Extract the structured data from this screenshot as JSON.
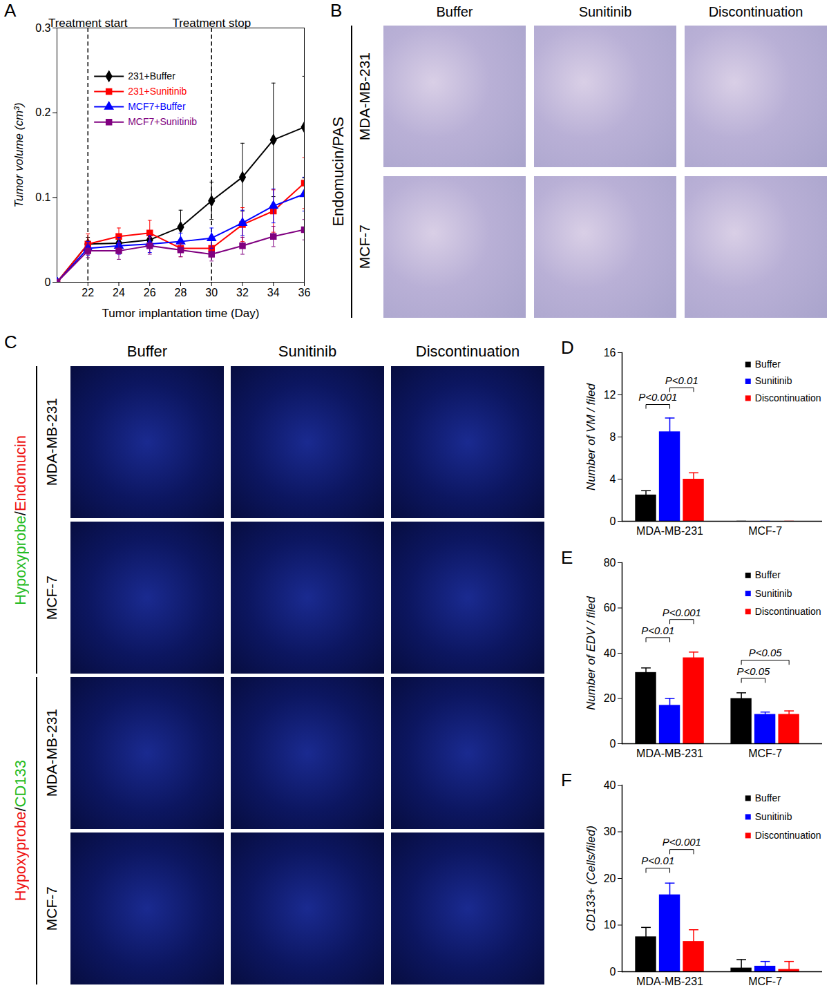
{
  "chart_data": [
    {
      "panel": "A",
      "type": "line",
      "x_label": "Tumor implantation time (Day)",
      "y_label": "Tumor volume (cm³)",
      "x": [
        20,
        22,
        24,
        26,
        28,
        30,
        32,
        34,
        36
      ],
      "xlim": [
        20,
        36
      ],
      "xticks": [
        22,
        24,
        26,
        28,
        30,
        32,
        34,
        36
      ],
      "ylim": [
        0,
        0.3
      ],
      "yticks": [
        0,
        0.1,
        0.2,
        0.3
      ],
      "legend": "top-left",
      "annotations": [
        {
          "text": "Treatment start",
          "x": 22
        },
        {
          "text": "Treatment stop",
          "x": 30
        }
      ],
      "series": [
        {
          "name": "231+Buffer",
          "color": "#000000",
          "marker": "diamond",
          "values": [
            0,
            0.045,
            0.046,
            0.05,
            0.065,
            0.096,
            0.124,
            0.168,
            0.183
          ],
          "errors": [
            0,
            0.008,
            0.008,
            0.01,
            0.02,
            0.022,
            0.04,
            0.067,
            0.06
          ]
        },
        {
          "name": "231+Sunitinib",
          "color": "#ff0000",
          "marker": "square",
          "values": [
            0,
            0.045,
            0.054,
            0.058,
            0.04,
            0.04,
            0.068,
            0.084,
            0.117
          ],
          "errors": [
            0,
            0.012,
            0.01,
            0.015,
            0.01,
            0.01,
            0.02,
            0.025,
            0.03
          ]
        },
        {
          "name": "MCF7+Buffer",
          "color": "#0000ff",
          "marker": "triangle",
          "values": [
            0,
            0.04,
            0.043,
            0.045,
            0.048,
            0.052,
            0.07,
            0.09,
            0.104
          ],
          "errors": [
            0,
            0.008,
            0.01,
            0.01,
            0.01,
            0.012,
            0.015,
            0.02,
            0.02
          ]
        },
        {
          "name": "MCF7+Sunitinib",
          "color": "#800080",
          "marker": "square",
          "values": [
            0,
            0.037,
            0.037,
            0.043,
            0.038,
            0.033,
            0.043,
            0.054,
            0.062
          ],
          "errors": [
            0,
            0.008,
            0.01,
            0.01,
            0.008,
            0.008,
            0.01,
            0.012,
            0.012
          ]
        }
      ]
    },
    {
      "panel": "D",
      "type": "bar",
      "y_label": "Number of VM / filed",
      "categories": [
        "MDA-MB-231",
        "MCF-7"
      ],
      "ylim": [
        0,
        16
      ],
      "yticks": [
        0,
        4,
        8,
        12,
        16
      ],
      "legend": "top-right",
      "series": [
        {
          "name": "Buffer",
          "color": "#000000",
          "values": [
            2.5,
            0
          ],
          "errors": [
            0.4,
            0
          ]
        },
        {
          "name": "Sunitinib",
          "color": "#0000ff",
          "values": [
            8.5,
            0
          ],
          "errors": [
            1.3,
            0
          ]
        },
        {
          "name": "Discontinuation",
          "color": "#ff0000",
          "values": [
            4,
            0
          ],
          "errors": [
            0.6,
            0
          ]
        }
      ],
      "comparisons": [
        {
          "category": "MDA-MB-231",
          "between": [
            "Buffer",
            "Sunitinib"
          ],
          "label": "P<0.001"
        },
        {
          "category": "MDA-MB-231",
          "between": [
            "Sunitinib",
            "Discontinuation"
          ],
          "label": "P<0.01"
        }
      ]
    },
    {
      "panel": "E",
      "type": "bar",
      "y_label": "Number of EDV / filed",
      "categories": [
        "MDA-MB-231",
        "MCF-7"
      ],
      "ylim": [
        0,
        80
      ],
      "yticks": [
        0,
        20,
        40,
        60,
        80
      ],
      "legend": "top-right",
      "series": [
        {
          "name": "Buffer",
          "color": "#000000",
          "values": [
            31.5,
            20
          ],
          "errors": [
            2,
            2.5
          ]
        },
        {
          "name": "Sunitinib",
          "color": "#0000ff",
          "values": [
            17,
            13
          ],
          "errors": [
            3,
            1
          ]
        },
        {
          "name": "Discontinuation",
          "color": "#ff0000",
          "values": [
            38,
            13
          ],
          "errors": [
            2.5,
            1.5
          ]
        }
      ],
      "comparisons": [
        {
          "category": "MDA-MB-231",
          "between": [
            "Buffer",
            "Sunitinib"
          ],
          "label": "P<0.01"
        },
        {
          "category": "MDA-MB-231",
          "between": [
            "Sunitinib",
            "Discontinuation"
          ],
          "label": "P<0.001"
        },
        {
          "category": "MCF-7",
          "between": [
            "Buffer",
            "Sunitinib"
          ],
          "label": "P<0.05"
        },
        {
          "category": "MCF-7",
          "between": [
            "Buffer",
            "Discontinuation"
          ],
          "label": "P<0.05"
        }
      ]
    },
    {
      "panel": "F",
      "type": "bar",
      "y_label": "CD133+ (Cells/filed)",
      "categories": [
        "MDA-MB-231",
        "MCF-7"
      ],
      "ylim": [
        0,
        40
      ],
      "yticks": [
        0,
        10,
        20,
        30,
        40
      ],
      "legend": "top-right",
      "series": [
        {
          "name": "Buffer",
          "color": "#000000",
          "values": [
            7.5,
            0.8
          ],
          "errors": [
            2,
            1.8
          ]
        },
        {
          "name": "Sunitinib",
          "color": "#0000ff",
          "values": [
            16.5,
            1.2
          ],
          "errors": [
            2.5,
            1
          ]
        },
        {
          "name": "Discontinuation",
          "color": "#ff0000",
          "values": [
            6.5,
            0.5
          ],
          "errors": [
            2.5,
            1.7
          ]
        }
      ],
      "comparisons": [
        {
          "category": "MDA-MB-231",
          "between": [
            "Buffer",
            "Sunitinib"
          ],
          "label": "P<0.01"
        },
        {
          "category": "MDA-MB-231",
          "between": [
            "Sunitinib",
            "Discontinuation"
          ],
          "label": "P<0.001"
        }
      ]
    }
  ],
  "image_panels": [
    {
      "panel": "B",
      "columns": [
        "Buffer",
        "Sunitinib",
        "Discontinuation"
      ],
      "groups": [
        {
          "stain": [
            {
              "text": "Endomucin/PAS",
              "color": "#000000"
            }
          ],
          "rows": [
            "MDA-MB-231",
            "MCF-7"
          ]
        }
      ]
    },
    {
      "panel": "C",
      "columns": [
        "Buffer",
        "Sunitinib",
        "Discontinuation"
      ],
      "groups": [
        {
          "stain": [
            {
              "text": "Hypoxyprobe",
              "color": "#22bb22"
            },
            {
              "text": "/",
              "color": "#000000"
            },
            {
              "text": "Endomucin",
              "color": "#ee1111"
            }
          ],
          "rows": [
            "MDA-MB-231",
            "MCF-7"
          ]
        },
        {
          "stain": [
            {
              "text": "Hypoxyprobe",
              "color": "#ee1111"
            },
            {
              "text": "/",
              "color": "#000000"
            },
            {
              "text": "CD133",
              "color": "#22bb22"
            }
          ],
          "rows": [
            "MDA-MB-231",
            "MCF-7"
          ]
        }
      ]
    }
  ]
}
